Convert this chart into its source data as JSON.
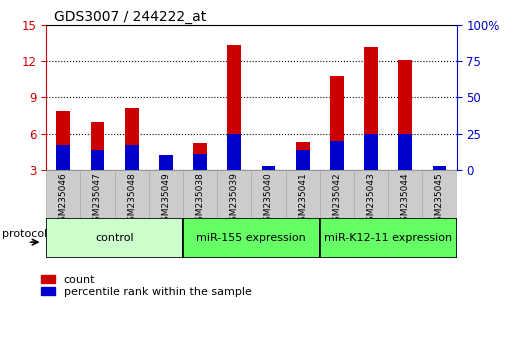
{
  "title": "GDS3007 / 244222_at",
  "samples": [
    "GSM235046",
    "GSM235047",
    "GSM235048",
    "GSM235049",
    "GSM235038",
    "GSM235039",
    "GSM235040",
    "GSM235041",
    "GSM235042",
    "GSM235043",
    "GSM235044",
    "GSM235045"
  ],
  "count_values": [
    7.9,
    7.0,
    8.1,
    4.0,
    5.2,
    13.3,
    3.3,
    5.3,
    10.8,
    13.2,
    12.1,
    3.3
  ],
  "percentile_values": [
    17,
    14,
    17,
    10,
    11,
    25,
    3,
    14,
    20,
    25,
    25,
    3
  ],
  "groups": [
    {
      "label": "control",
      "start": 0,
      "end": 4,
      "color": "#ccffcc"
    },
    {
      "label": "miR-155 expression",
      "start": 4,
      "end": 8,
      "color": "#66ff66"
    },
    {
      "label": "miR-K12-11 expression",
      "start": 8,
      "end": 12,
      "color": "#66ff66"
    }
  ],
  "proto_colors": [
    "#ccffcc",
    "#66ff66",
    "#66ff66"
  ],
  "ylim_left": [
    3,
    15
  ],
  "yticks_left": [
    3,
    6,
    9,
    12,
    15
  ],
  "ylim_right": [
    0,
    100
  ],
  "yticks_right": [
    0,
    25,
    50,
    75,
    100
  ],
  "bar_width": 0.4,
  "red_color": "#cc0000",
  "blue_color": "#0000cc",
  "bg_color": "#ffffff",
  "left_tick_color": "#cc0000",
  "right_tick_color": "#0000cc",
  "xlabel_bg": "#cccccc",
  "xlabel_edge": "#aaaaaa"
}
